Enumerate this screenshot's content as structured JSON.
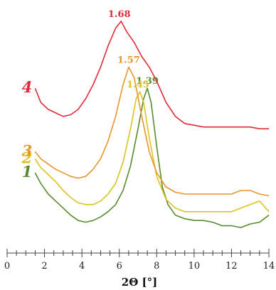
{
  "chart_data": {
    "type": "line",
    "title": "",
    "xlabel": "2Θ [°]",
    "ylabel": "",
    "xlim": [
      0,
      14
    ],
    "x_ticks": [
      "0",
      "2",
      "4",
      "6",
      "8",
      "10",
      "12",
      "14"
    ],
    "x_minor_step": 0.5,
    "y_axis_visible": false,
    "grid": false,
    "series": [
      {
        "name": "1",
        "color": "#5a8a2e",
        "peak_label": "1.39",
        "peak_x": 7.5,
        "points": [
          [
            1.5,
            0.3
          ],
          [
            1.8,
            0.24
          ],
          [
            2.2,
            0.18
          ],
          [
            2.6,
            0.14
          ],
          [
            3.0,
            0.1
          ],
          [
            3.4,
            0.06
          ],
          [
            3.8,
            0.03
          ],
          [
            4.2,
            0.02
          ],
          [
            4.6,
            0.03
          ],
          [
            5.0,
            0.05
          ],
          [
            5.4,
            0.08
          ],
          [
            5.8,
            0.12
          ],
          [
            6.2,
            0.2
          ],
          [
            6.6,
            0.34
          ],
          [
            7.0,
            0.55
          ],
          [
            7.3,
            0.72
          ],
          [
            7.5,
            0.78
          ],
          [
            7.7,
            0.7
          ],
          [
            8.0,
            0.45
          ],
          [
            8.3,
            0.22
          ],
          [
            8.6,
            0.12
          ],
          [
            9.0,
            0.06
          ],
          [
            9.5,
            0.04
          ],
          [
            10.0,
            0.03
          ],
          [
            10.5,
            0.03
          ],
          [
            11.0,
            0.02
          ],
          [
            11.5,
            0.0
          ],
          [
            12.0,
            0.0
          ],
          [
            12.5,
            -0.01
          ],
          [
            13.0,
            0.01
          ],
          [
            13.5,
            0.02
          ],
          [
            14.0,
            0.06
          ]
        ]
      },
      {
        "name": "2",
        "color": "#dcc31e",
        "peak_label": "1.45",
        "peak_x": 7.0,
        "points": [
          [
            1.5,
            0.38
          ],
          [
            1.8,
            0.33
          ],
          [
            2.2,
            0.29
          ],
          [
            2.6,
            0.25
          ],
          [
            3.0,
            0.2
          ],
          [
            3.4,
            0.16
          ],
          [
            3.8,
            0.13
          ],
          [
            4.2,
            0.12
          ],
          [
            4.6,
            0.12
          ],
          [
            5.0,
            0.14
          ],
          [
            5.4,
            0.18
          ],
          [
            5.8,
            0.24
          ],
          [
            6.2,
            0.36
          ],
          [
            6.6,
            0.55
          ],
          [
            6.9,
            0.72
          ],
          [
            7.1,
            0.76
          ],
          [
            7.3,
            0.7
          ],
          [
            7.6,
            0.5
          ],
          [
            8.0,
            0.28
          ],
          [
            8.5,
            0.15
          ],
          [
            9.0,
            0.1
          ],
          [
            9.5,
            0.08
          ],
          [
            10.0,
            0.08
          ],
          [
            10.5,
            0.08
          ],
          [
            11.0,
            0.08
          ],
          [
            11.5,
            0.08
          ],
          [
            12.0,
            0.08
          ],
          [
            12.5,
            0.1
          ],
          [
            13.0,
            0.12
          ],
          [
            13.5,
            0.14
          ],
          [
            14.0,
            0.08
          ]
        ]
      },
      {
        "name": "3",
        "color": "#e8962a",
        "peak_label": "1.57",
        "peak_x": 6.5,
        "points": [
          [
            1.5,
            0.42
          ],
          [
            1.8,
            0.38
          ],
          [
            2.2,
            0.35
          ],
          [
            2.6,
            0.32
          ],
          [
            3.0,
            0.3
          ],
          [
            3.4,
            0.28
          ],
          [
            3.8,
            0.27
          ],
          [
            4.2,
            0.28
          ],
          [
            4.6,
            0.32
          ],
          [
            5.0,
            0.38
          ],
          [
            5.4,
            0.48
          ],
          [
            5.8,
            0.62
          ],
          [
            6.2,
            0.8
          ],
          [
            6.5,
            0.9
          ],
          [
            6.8,
            0.84
          ],
          [
            7.2,
            0.62
          ],
          [
            7.6,
            0.42
          ],
          [
            8.0,
            0.3
          ],
          [
            8.5,
            0.22
          ],
          [
            9.0,
            0.19
          ],
          [
            9.5,
            0.18
          ],
          [
            10.0,
            0.18
          ],
          [
            10.5,
            0.18
          ],
          [
            11.0,
            0.18
          ],
          [
            11.5,
            0.18
          ],
          [
            12.0,
            0.18
          ],
          [
            12.5,
            0.2
          ],
          [
            13.0,
            0.2
          ],
          [
            13.5,
            0.18
          ],
          [
            14.0,
            0.17
          ]
        ]
      },
      {
        "name": "4",
        "color": "#e02a3a",
        "peak_label": "1.68",
        "peak_x": 6.0,
        "points": [
          [
            1.5,
            0.78
          ],
          [
            1.8,
            0.7
          ],
          [
            2.2,
            0.66
          ],
          [
            2.6,
            0.64
          ],
          [
            3.0,
            0.62
          ],
          [
            3.4,
            0.63
          ],
          [
            3.8,
            0.66
          ],
          [
            4.2,
            0.72
          ],
          [
            4.6,
            0.8
          ],
          [
            5.0,
            0.9
          ],
          [
            5.4,
            1.02
          ],
          [
            5.8,
            1.12
          ],
          [
            6.1,
            1.16
          ],
          [
            6.4,
            1.1
          ],
          [
            6.8,
            1.04
          ],
          [
            7.2,
            0.96
          ],
          [
            7.6,
            0.9
          ],
          [
            8.0,
            0.82
          ],
          [
            8.5,
            0.7
          ],
          [
            9.0,
            0.62
          ],
          [
            9.5,
            0.58
          ],
          [
            10.0,
            0.57
          ],
          [
            10.5,
            0.56
          ],
          [
            11.0,
            0.56
          ],
          [
            11.5,
            0.56
          ],
          [
            12.0,
            0.56
          ],
          [
            12.5,
            0.56
          ],
          [
            13.0,
            0.56
          ],
          [
            13.5,
            0.55
          ],
          [
            14.0,
            0.55
          ]
        ]
      }
    ]
  }
}
